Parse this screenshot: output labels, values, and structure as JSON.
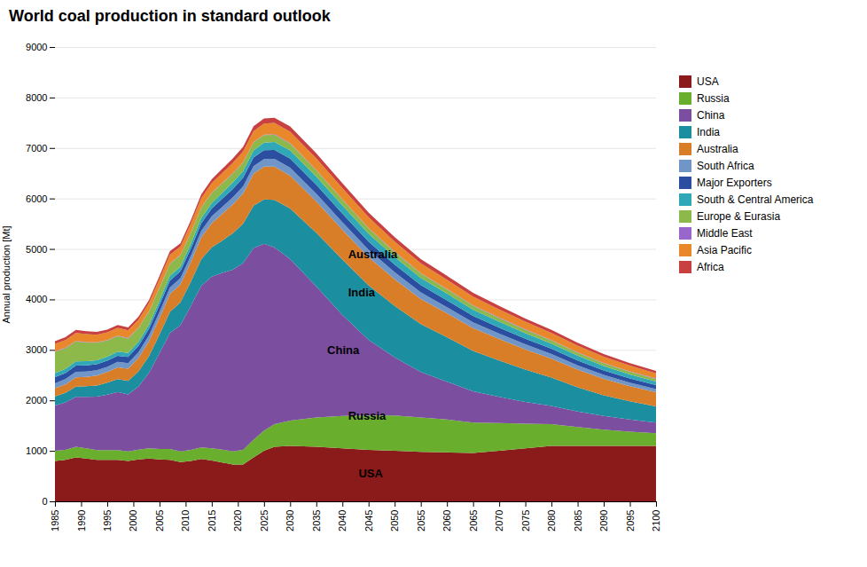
{
  "chart_data": {
    "type": "area",
    "stacked": true,
    "title": "World coal production in standard outlook",
    "ylabel": "Annual production [Mt]",
    "xlim": [
      1985,
      2100
    ],
    "ylim": [
      0,
      9000
    ],
    "xticks": [
      1985,
      1990,
      1995,
      2000,
      2005,
      2010,
      2015,
      2020,
      2025,
      2030,
      2035,
      2040,
      2045,
      2050,
      2055,
      2060,
      2065,
      2070,
      2075,
      2080,
      2085,
      2090,
      2095,
      2100
    ],
    "yticks": [
      0,
      1000,
      2000,
      3000,
      4000,
      5000,
      6000,
      7000,
      8000,
      9000
    ],
    "grid": true,
    "legend": "right",
    "x": [
      1985,
      1987,
      1989,
      1991,
      1993,
      1995,
      1997,
      1999,
      2001,
      2003,
      2005,
      2007,
      2009,
      2011,
      2013,
      2015,
      2017,
      2019,
      2021,
      2023,
      2025,
      2027,
      2030,
      2035,
      2040,
      2045,
      2050,
      2055,
      2060,
      2065,
      2070,
      2075,
      2080,
      2085,
      2090,
      2095,
      2100
    ],
    "series": [
      {
        "name": "USA",
        "color": "#8B1A1A",
        "values": [
          800,
          820,
          870,
          850,
          820,
          820,
          820,
          800,
          830,
          850,
          830,
          820,
          780,
          800,
          840,
          810,
          770,
          730,
          730,
          870,
          1000,
          1080,
          1100,
          1080,
          1050,
          1020,
          1000,
          980,
          970,
          960,
          1000,
          1050,
          1100,
          1100,
          1100,
          1100,
          1100
        ]
      },
      {
        "name": "Russia",
        "color": "#6AAE2E",
        "values": [
          200,
          200,
          210,
          200,
          195,
          195,
          195,
          190,
          195,
          200,
          205,
          215,
          210,
          220,
          230,
          240,
          255,
          260,
          290,
          350,
          400,
          450,
          500,
          580,
          640,
          680,
          700,
          680,
          650,
          600,
          550,
          490,
          430,
          370,
          320,
          280,
          250
        ]
      },
      {
        "name": "China",
        "color": "#7B4EA0",
        "values": [
          900,
          940,
          990,
          1020,
          1060,
          1100,
          1150,
          1130,
          1250,
          1500,
          1900,
          2300,
          2500,
          2850,
          3200,
          3400,
          3500,
          3600,
          3700,
          3800,
          3700,
          3500,
          3200,
          2600,
          2000,
          1500,
          1150,
          900,
          750,
          620,
          520,
          430,
          360,
          310,
          270,
          240,
          210
        ]
      },
      {
        "name": "India",
        "color": "#1B8FA0",
        "values": [
          180,
          190,
          200,
          210,
          220,
          235,
          255,
          265,
          300,
          330,
          370,
          420,
          450,
          480,
          530,
          580,
          640,
          720,
          780,
          840,
          880,
          940,
          1000,
          1060,
          1100,
          1080,
          1020,
          950,
          880,
          800,
          720,
          640,
          560,
          480,
          410,
          360,
          320
        ]
      },
      {
        "name": "Australia",
        "color": "#D97E28",
        "values": [
          160,
          165,
          185,
          185,
          195,
          210,
          235,
          245,
          270,
          295,
          330,
          355,
          360,
          390,
          430,
          480,
          530,
          570,
          600,
          630,
          650,
          660,
          650,
          620,
          590,
          560,
          530,
          500,
          475,
          450,
          425,
          400,
          375,
          350,
          325,
          300,
          280
        ]
      },
      {
        "name": "South Africa",
        "color": "#7096C8",
        "values": [
          100,
          105,
          110,
          108,
          106,
          105,
          108,
          108,
          112,
          115,
          120,
          125,
          120,
          125,
          130,
          135,
          138,
          140,
          142,
          148,
          152,
          155,
          158,
          155,
          150,
          145,
          138,
          130,
          122,
          115,
          108,
          100,
          93,
          85,
          78,
          72,
          65
        ]
      },
      {
        "name": "Major Exporters",
        "color": "#2B4EA0",
        "values": [
          120,
          122,
          125,
          122,
          120,
          120,
          122,
          122,
          125,
          128,
          132,
          138,
          135,
          140,
          148,
          155,
          160,
          165,
          168,
          172,
          175,
          178,
          180,
          175,
          168,
          160,
          152,
          143,
          135,
          127,
          120,
          112,
          105,
          97,
          90,
          83,
          76
        ]
      },
      {
        "name": "South & Central America",
        "color": "#30A8B8",
        "values": [
          80,
          82,
          83,
          82,
          81,
          82,
          83,
          82,
          84,
          86,
          90,
          95,
          92,
          98,
          105,
          112,
          120,
          128,
          135,
          142,
          148,
          155,
          162,
          165,
          165,
          160,
          152,
          143,
          135,
          127,
          118,
          110,
          102,
          95,
          87,
          80,
          74
        ]
      },
      {
        "name": "Europe & Eurasia",
        "color": "#8DB84A",
        "values": [
          420,
          410,
          395,
          370,
          345,
          320,
          305,
          285,
          270,
          258,
          248,
          238,
          225,
          215,
          205,
          195,
          185,
          175,
          165,
          158,
          150,
          143,
          135,
          122,
          112,
          103,
          95,
          88,
          82,
          76,
          71,
          66,
          62,
          58,
          54,
          51,
          48
        ]
      },
      {
        "name": "Middle East",
        "color": "#9966CC",
        "values": [
          10,
          10,
          10,
          10,
          10,
          10,
          10,
          10,
          10,
          10,
          10,
          10,
          10,
          10,
          10,
          10,
          10,
          10,
          10,
          10,
          10,
          10,
          10,
          10,
          10,
          10,
          10,
          10,
          10,
          10,
          10,
          10,
          10,
          10,
          10,
          10,
          10
        ]
      },
      {
        "name": "Asia Pacific",
        "color": "#E8882A",
        "values": [
          150,
          152,
          158,
          155,
          150,
          150,
          152,
          152,
          155,
          160,
          165,
          172,
          165,
          172,
          180,
          188,
          195,
          202,
          208,
          215,
          220,
          225,
          228,
          225,
          218,
          210,
          200,
          190,
          180,
          170,
          160,
          150,
          140,
          130,
          121,
          112,
          104
        ]
      },
      {
        "name": "Africa",
        "color": "#C84040",
        "values": [
          55,
          57,
          60,
          58,
          56,
          56,
          57,
          56,
          58,
          60,
          63,
          67,
          64,
          68,
          73,
          78,
          83,
          88,
          93,
          97,
          100,
          103,
          105,
          102,
          98,
          93,
          88,
          83,
          79,
          74,
          70,
          65,
          61,
          56,
          52,
          48,
          45
        ]
      }
    ],
    "annotations": [
      {
        "text": "USA",
        "x": 2043,
        "y": 550
      },
      {
        "text": "Russia",
        "x": 2041,
        "y": 1700
      },
      {
        "text": "China",
        "x": 2037,
        "y": 3000
      },
      {
        "text": "India",
        "x": 2041,
        "y": 4150
      },
      {
        "text": "Australia",
        "x": 2041,
        "y": 4900
      }
    ]
  }
}
